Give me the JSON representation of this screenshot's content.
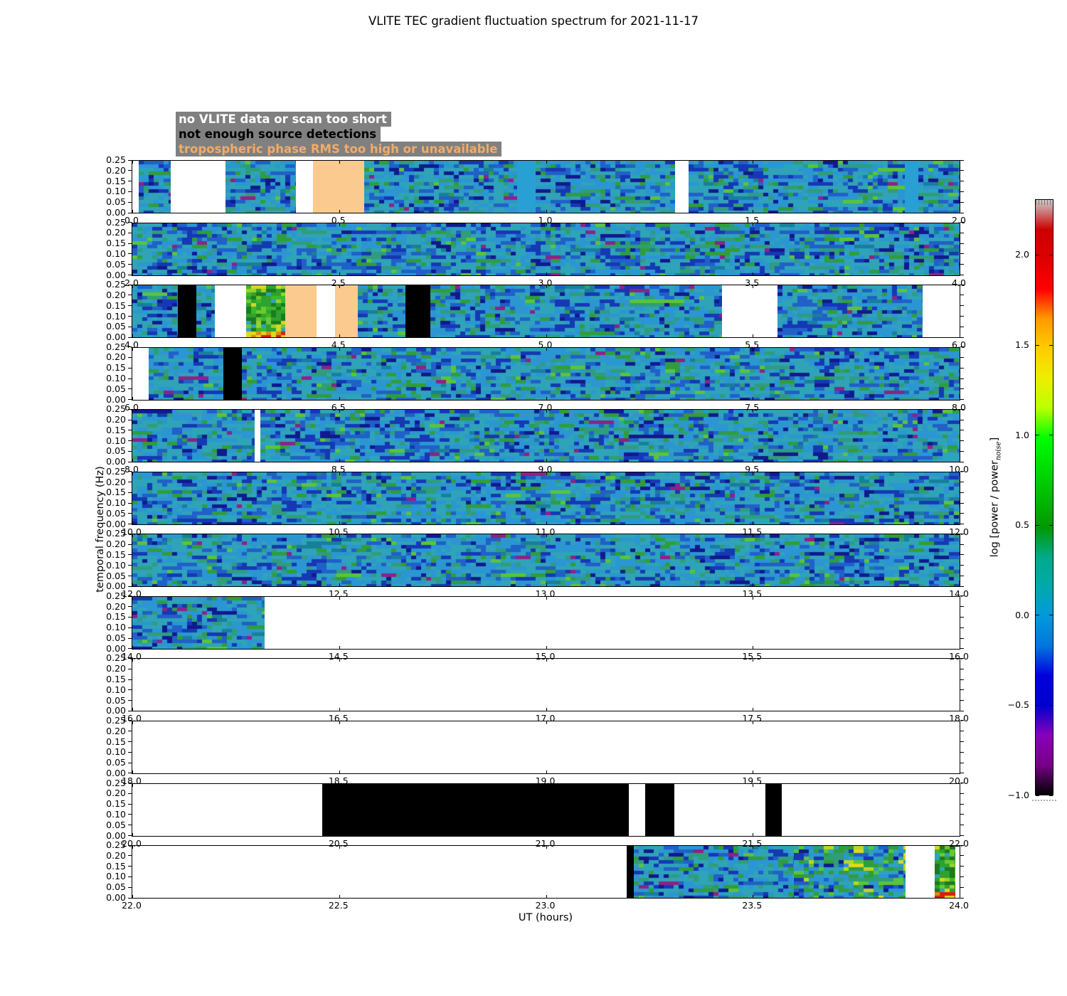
{
  "title": "VLITE TEC gradient fluctuation spectrum for 2021-11-17",
  "legend": {
    "items": [
      {
        "label": "no VLITE data or scan too short",
        "text_color": "#ffffff",
        "bg": "#808080"
      },
      {
        "label": "not enough source detections",
        "text_color": "#000000",
        "bg": "#808080"
      },
      {
        "label": "tropospheric phase RMS too high or unavailable",
        "text_color": "#f3ab66",
        "bg": "#808080"
      }
    ]
  },
  "axes": {
    "xlabel": "UT (hours)",
    "ylabel": "temporal frequency (Hz)",
    "y_tick_labels": [
      "0.25",
      "0.20",
      "0.15",
      "0.10",
      "0.05",
      "0.00"
    ],
    "y_tick_values": [
      0.25,
      0.2,
      0.15,
      0.1,
      0.05,
      0.0
    ]
  },
  "colorbar": {
    "label_prefix": "log [power / power",
    "label_sub": "noise",
    "label_suffix": "]",
    "tick_labels": [
      "2.0",
      "1.5",
      "1.0",
      "0.5",
      "0.0",
      "−0.5",
      "−1.0"
    ],
    "tick_values": [
      2.0,
      1.5,
      1.0,
      0.5,
      0.0,
      -0.5,
      -1.0
    ],
    "vmin": -1.0,
    "vmax": 2.31,
    "colormap": "nipy_spectral",
    "stops": [
      [
        0.0,
        "#000000"
      ],
      [
        0.05,
        "#770088"
      ],
      [
        0.1,
        "#8800bb"
      ],
      [
        0.15,
        "#0000cc"
      ],
      [
        0.2,
        "#0000dd"
      ],
      [
        0.25,
        "#0077dd"
      ],
      [
        0.3,
        "#0099dd"
      ],
      [
        0.35,
        "#00aaaa"
      ],
      [
        0.4,
        "#00aa88"
      ],
      [
        0.45,
        "#009900"
      ],
      [
        0.5,
        "#00bb00"
      ],
      [
        0.55,
        "#00dd00"
      ],
      [
        0.6,
        "#00ff00"
      ],
      [
        0.65,
        "#bbff00"
      ],
      [
        0.7,
        "#eeee00"
      ],
      [
        0.75,
        "#ffcc00"
      ],
      [
        0.8,
        "#ff9900"
      ],
      [
        0.85,
        "#ff0000"
      ],
      [
        0.9,
        "#dd0000"
      ],
      [
        0.95,
        "#cc0000"
      ],
      [
        1.0,
        "#cccccc"
      ]
    ]
  },
  "chart_data": {
    "type": "heatmap",
    "x_unit": "UT hours",
    "y_unit": "Hz",
    "ylim": [
      0.0,
      0.25
    ],
    "value_label": "log [power / power_noise]",
    "flag_colors": {
      "no_data": "#ffffff",
      "not_enough_sources": "#000000",
      "tropo_rms": "#fbca8e"
    },
    "noise_palette": [
      [
        "#2fa3b8",
        30
      ],
      [
        "#2b96d2",
        25
      ],
      [
        "#2060c8",
        12
      ],
      [
        "#1638b4",
        10
      ],
      [
        "#101a8c",
        5
      ],
      [
        "#2f9d7a",
        8
      ],
      [
        "#2f9d3c",
        5
      ],
      [
        "#59c43c",
        2
      ],
      [
        "#187f9b",
        2
      ],
      [
        "#8c2386",
        1
      ]
    ],
    "hot_palette": [
      [
        "#2fa3b8",
        20
      ],
      [
        "#2b96d2",
        18
      ],
      [
        "#2060c8",
        9
      ],
      [
        "#1638b4",
        7
      ],
      [
        "#101a8c",
        3
      ],
      [
        "#2f9d7a",
        10
      ],
      [
        "#2f9d3c",
        14
      ],
      [
        "#59c43c",
        10
      ],
      [
        "#b8d62a",
        6
      ],
      [
        "#e0d820",
        3
      ]
    ],
    "burst_palette": [
      [
        "#1d7a1d",
        25
      ],
      [
        "#2da32d",
        30
      ],
      [
        "#3db82a",
        15
      ],
      [
        "#6cc832",
        12
      ],
      [
        "#9ad228",
        8
      ],
      [
        "#d6d628",
        6
      ],
      [
        "#2fa3b8",
        4
      ]
    ],
    "burst_bottom_palette": [
      [
        "#e0d820",
        40
      ],
      [
        "#e08818",
        30
      ],
      [
        "#d42010",
        30
      ]
    ],
    "flat_color": "#29a0d4",
    "panels": [
      {
        "ut_start": 0,
        "ut_end": 2,
        "x_tick_labels": [
          "0.0",
          "0.5",
          "1.0",
          "1.5",
          "2.0"
        ],
        "segments": [
          {
            "kind": "data",
            "start": 0.015,
            "end": 0.092
          },
          {
            "kind": "data",
            "start": 0.225,
            "end": 0.395
          },
          {
            "kind": "tropo",
            "start": 0.437,
            "end": 0.561
          },
          {
            "kind": "data",
            "start": 0.561,
            "end": 0.93
          },
          {
            "kind": "flat",
            "start": 0.93,
            "end": 0.975
          },
          {
            "kind": "data",
            "start": 0.975,
            "end": 1.312
          },
          {
            "kind": "data",
            "start": 1.345,
            "end": 1.868
          },
          {
            "kind": "flat",
            "start": 1.868,
            "end": 1.9
          },
          {
            "kind": "data",
            "start": 1.9,
            "end": 2.0
          }
        ]
      },
      {
        "ut_start": 2,
        "ut_end": 4,
        "x_tick_labels": [
          "2.0",
          "2.5",
          "3.0",
          "3.5",
          "4.0"
        ],
        "segments": [
          {
            "kind": "data",
            "start": 2.0,
            "end": 4.0
          }
        ]
      },
      {
        "ut_start": 4,
        "ut_end": 6,
        "x_tick_labels": [
          "4.0",
          "4.5",
          "5.0",
          "5.5",
          "6.0"
        ],
        "segments": [
          {
            "kind": "data",
            "start": 4.0,
            "end": 4.11
          },
          {
            "kind": "black",
            "start": 4.11,
            "end": 4.155
          },
          {
            "kind": "data",
            "start": 4.155,
            "end": 4.2
          },
          {
            "kind": "burst",
            "start": 4.275,
            "end": 4.37
          },
          {
            "kind": "tropo",
            "start": 4.37,
            "end": 4.445
          },
          {
            "kind": "tropo",
            "start": 4.49,
            "end": 4.545
          },
          {
            "kind": "data",
            "start": 4.545,
            "end": 4.66
          },
          {
            "kind": "black",
            "start": 4.66,
            "end": 4.72
          },
          {
            "kind": "data",
            "start": 4.72,
            "end": 5.425
          },
          {
            "kind": "data",
            "start": 5.56,
            "end": 5.91
          }
        ]
      },
      {
        "ut_start": 6,
        "ut_end": 8,
        "x_tick_labels": [
          "6.0",
          "6.5",
          "7.0",
          "7.5",
          "8.0"
        ],
        "segments": [
          {
            "kind": "data",
            "start": 6.04,
            "end": 6.22
          },
          {
            "kind": "black",
            "start": 6.22,
            "end": 6.265
          },
          {
            "kind": "data",
            "start": 6.265,
            "end": 8.0
          }
        ]
      },
      {
        "ut_start": 8,
        "ut_end": 10,
        "x_tick_labels": [
          "8.0",
          "8.5",
          "9.0",
          "9.5",
          "10.0"
        ],
        "segments": [
          {
            "kind": "data",
            "start": 8.0,
            "end": 8.295
          },
          {
            "kind": "data",
            "start": 8.31,
            "end": 10.0
          }
        ]
      },
      {
        "ut_start": 10,
        "ut_end": 12,
        "x_tick_labels": [
          "10.0",
          "10.5",
          "11.0",
          "11.5",
          "12.0"
        ],
        "segments": [
          {
            "kind": "data",
            "start": 10.0,
            "end": 12.0
          }
        ]
      },
      {
        "ut_start": 12,
        "ut_end": 14,
        "x_tick_labels": [
          "12.0",
          "12.5",
          "13.0",
          "13.5",
          "14.0"
        ],
        "segments": [
          {
            "kind": "data",
            "start": 12.0,
            "end": 14.0
          }
        ]
      },
      {
        "ut_start": 14,
        "ut_end": 16,
        "x_tick_labels": [
          "14.0",
          "14.5",
          "15.0",
          "15.5",
          "16.0"
        ],
        "segments": [
          {
            "kind": "data",
            "start": 14.0,
            "end": 14.32
          }
        ]
      },
      {
        "ut_start": 16,
        "ut_end": 18,
        "x_tick_labels": [
          "16.0",
          "16.5",
          "17.0",
          "17.5",
          "18.0"
        ],
        "segments": []
      },
      {
        "ut_start": 18,
        "ut_end": 20,
        "x_tick_labels": [
          "18.0",
          "18.5",
          "19.0",
          "19.5",
          "20.0"
        ],
        "segments": []
      },
      {
        "ut_start": 20,
        "ut_end": 22,
        "x_tick_labels": [
          "20.0",
          "20.5",
          "21.0",
          "21.5",
          "22.0"
        ],
        "segments": [
          {
            "kind": "black",
            "start": 20.46,
            "end": 21.2
          },
          {
            "kind": "black",
            "start": 21.24,
            "end": 21.31
          },
          {
            "kind": "black",
            "start": 21.53,
            "end": 21.57
          }
        ]
      },
      {
        "ut_start": 22,
        "ut_end": 24,
        "x_tick_labels": [
          "22.0",
          "22.5",
          "23.0",
          "23.5",
          "24.0"
        ],
        "segments": [
          {
            "kind": "black",
            "start": 23.195,
            "end": 23.212
          },
          {
            "kind": "data",
            "start": 23.212,
            "end": 23.6
          },
          {
            "kind": "data-hot",
            "start": 23.6,
            "end": 23.87
          },
          {
            "kind": "burst",
            "start": 23.94,
            "end": 23.99
          }
        ]
      }
    ]
  }
}
